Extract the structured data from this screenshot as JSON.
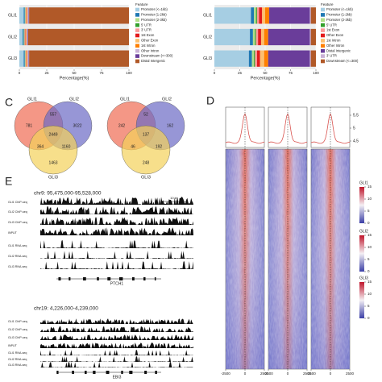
{
  "chart_data": [
    {
      "type": "hbar-stacked",
      "categories": [
        "GLI1",
        "GLI2",
        "GLI3"
      ],
      "xlabel": "Percentage(%)",
      "legend_title": "Feature",
      "xlim": [
        0,
        100
      ],
      "xticks": [
        0,
        25,
        50,
        75,
        100
      ],
      "series": [
        {
          "name": "Promoter (<=1kb)",
          "color": "#a6cee3",
          "values": [
            4,
            3,
            4
          ]
        },
        {
          "name": "Promoter (1-2kb)",
          "color": "#1f78b4",
          "values": [
            1,
            1,
            1
          ]
        },
        {
          "name": "Promoter (2-3kb)",
          "color": "#b2df8a",
          "values": [
            0.5,
            0.5,
            0.5
          ]
        },
        {
          "name": "5' UTR",
          "color": "#33a02c",
          "values": [
            0.2,
            0.2,
            0.2
          ]
        },
        {
          "name": "3' UTR",
          "color": "#fb9a99",
          "values": [
            0.5,
            0.5,
            0.5
          ]
        },
        {
          "name": "1st Exon",
          "color": "#e31a1c",
          "values": [
            0.3,
            0.3,
            0.3
          ]
        },
        {
          "name": "Other Exon",
          "color": "#fdbf6f",
          "values": [
            0.5,
            0.5,
            0.5
          ]
        },
        {
          "name": "1st Intron",
          "color": "#ff7f00",
          "values": [
            0.5,
            0.5,
            0.5
          ]
        },
        {
          "name": "Other Intron",
          "color": "#cab2d6",
          "values": [
            1,
            1,
            1
          ]
        },
        {
          "name": "Downstream (<=300)",
          "color": "#6a3d9a",
          "values": [
            0.5,
            0.5,
            0.5
          ]
        },
        {
          "name": "Distal Intergenic",
          "color": "#b15928",
          "values": [
            91,
            92,
            91
          ]
        }
      ]
    },
    {
      "type": "hbar-stacked",
      "categories": [
        "GLI1",
        "GLI2",
        "GLI3"
      ],
      "xlabel": "Percentage(%)",
      "legend_title": "Feature",
      "xlim": [
        0,
        100
      ],
      "xticks": [
        0,
        25,
        50,
        75,
        100
      ],
      "series": [
        {
          "name": "Promoter (<=1kb)",
          "color": "#a6cee3",
          "values": [
            36,
            35,
            34
          ]
        },
        {
          "name": "Promoter (1-2kb)",
          "color": "#1f78b4",
          "values": [
            3,
            3,
            3
          ]
        },
        {
          "name": "Promoter (2-3kb)",
          "color": "#b2df8a",
          "values": [
            2,
            2,
            2
          ]
        },
        {
          "name": "5' UTR",
          "color": "#33a02c",
          "values": [
            1,
            1,
            1
          ]
        },
        {
          "name": "1st Exon",
          "color": "#fb9a99",
          "values": [
            2,
            2,
            2
          ]
        },
        {
          "name": "Other Exon",
          "color": "#e31a1c",
          "values": [
            3,
            3,
            3
          ]
        },
        {
          "name": "1st Intron",
          "color": "#fdbf6f",
          "values": [
            3,
            3,
            4
          ]
        },
        {
          "name": "Other Intron",
          "color": "#ff7f00",
          "values": [
            4,
            4,
            4
          ]
        },
        {
          "name": "Distal Intergenic",
          "color": "#6a3d9a",
          "values": [
            40,
            41,
            41
          ]
        },
        {
          "name": "3' UTR",
          "color": "#cab2d6",
          "values": [
            1,
            1,
            1
          ]
        },
        {
          "name": "Downstream (<=300)",
          "color": "#b15928",
          "values": [
            5,
            5,
            5
          ]
        }
      ]
    }
  ],
  "panel_labels": [
    "C",
    "D",
    "E"
  ],
  "venn": [
    {
      "sets": [
        "GLI1",
        "GLI2",
        "GLI3"
      ],
      "regions": [
        781,
        557,
        3022,
        2449,
        364,
        1160,
        1463
      ]
    },
    {
      "sets": [
        "GLI1",
        "GLI2",
        "GLI3"
      ],
      "regions": [
        242,
        52,
        162,
        137,
        46,
        192,
        248
      ]
    }
  ],
  "heatmap": {
    "xticks": [
      -2500,
      0,
      2500
    ],
    "profile_yticks": [
      5.5,
      5,
      4.5
    ],
    "colorbars": [
      {
        "name": "GLI1",
        "ticks": [
          15,
          10,
          5,
          0
        ]
      },
      {
        "name": "GLI2",
        "ticks": [
          15,
          10,
          5,
          0
        ]
      },
      {
        "name": "GLI3",
        "ticks": [
          15,
          10,
          5,
          0
        ]
      }
    ]
  },
  "tracks": [
    {
      "region": "chr9: 95,475,000-95,528,000",
      "scale": "10 kb",
      "labels": [
        "GLI1 ChIP-seq",
        "GLI2 ChIP-seq",
        "GLI3 ChIP-seq",
        "INPUT",
        "GLI1 RNA-seq",
        "GLI2 RNA-seq",
        "GLI3 RNA-seq"
      ],
      "gene": "PTCH1"
    },
    {
      "region": "chr19: 4,226,000-4,239,000",
      "labels": [
        "GLI1 ChIP-seq",
        "GLI2 ChIP-seq",
        "GLI3 ChIP-seq",
        "INPUT",
        "GLI1 RNA-seq",
        "GLI2 RNA-seq",
        "GLI3 RNA-seq"
      ],
      "gene": "EBI3"
    }
  ]
}
